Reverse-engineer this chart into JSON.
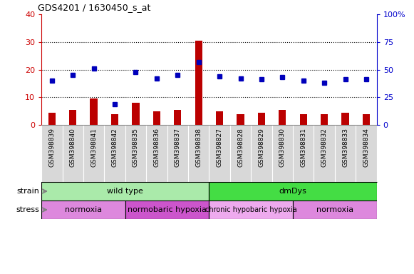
{
  "title": "GDS4201 / 1630450_s_at",
  "samples": [
    "GSM398839",
    "GSM398840",
    "GSM398841",
    "GSM398842",
    "GSM398835",
    "GSM398836",
    "GSM398837",
    "GSM398838",
    "GSM398827",
    "GSM398828",
    "GSM398829",
    "GSM398830",
    "GSM398831",
    "GSM398832",
    "GSM398833",
    "GSM398834"
  ],
  "counts": [
    4.5,
    5.5,
    9.5,
    4.0,
    8.0,
    5.0,
    5.5,
    30.5,
    5.0,
    4.0,
    4.5,
    5.5,
    4.0,
    4.0,
    4.5,
    4.0
  ],
  "percentiles": [
    40,
    45,
    51,
    19,
    48,
    42,
    45,
    57,
    44,
    42,
    41,
    43,
    40,
    38,
    41,
    41
  ],
  "ylim_left": [
    0,
    40
  ],
  "ylim_right": [
    0,
    100
  ],
  "yticks_left": [
    0,
    10,
    20,
    30,
    40
  ],
  "yticks_right": [
    0,
    25,
    50,
    75,
    100
  ],
  "strain_groups": [
    {
      "label": "wild type",
      "start": 0,
      "end": 8,
      "color": "#aaeaaa"
    },
    {
      "label": "dmDys",
      "start": 8,
      "end": 16,
      "color": "#44dd44"
    }
  ],
  "stress_groups": [
    {
      "label": "normoxia",
      "start": 0,
      "end": 4,
      "color": "#dd88dd"
    },
    {
      "label": "normobaric hypoxia",
      "start": 4,
      "end": 8,
      "color": "#cc55cc"
    },
    {
      "label": "chronic hypobaric hypoxia",
      "start": 8,
      "end": 12,
      "color": "#eeaaee"
    },
    {
      "label": "normoxia",
      "start": 12,
      "end": 16,
      "color": "#dd88dd"
    }
  ],
  "bar_color": "#bb0000",
  "dot_color": "#0000bb",
  "tick_color_left": "#cc0000",
  "tick_color_right": "#0000cc",
  "xticklabel_bg": "#d8d8d8",
  "plot_bg": "#ffffff",
  "border_color": "#888888"
}
